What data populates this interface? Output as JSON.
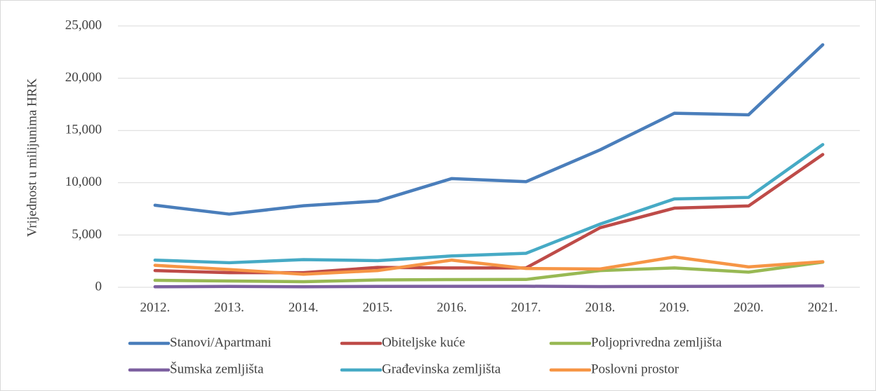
{
  "chart_data": {
    "type": "line",
    "ylabel": "Vrijednost u milijunima HRK",
    "categories": [
      "2012.",
      "2013.",
      "2014.",
      "2015.",
      "2016.",
      "2017.",
      "2018.",
      "2019.",
      "2020.",
      "2021."
    ],
    "series": [
      {
        "name": "Stanovi/Apartmani",
        "color": "#4a7ebb",
        "values": [
          7850,
          7000,
          7800,
          8250,
          10400,
          10100,
          13150,
          16650,
          16500,
          23200
        ]
      },
      {
        "name": "Obiteljske kuće",
        "color": "#be4b48",
        "values": [
          1600,
          1400,
          1400,
          1900,
          1850,
          1850,
          5700,
          7570,
          7780,
          12700
        ]
      },
      {
        "name": "Poljoprivredna zemljišta",
        "color": "#98b954",
        "values": [
          670,
          600,
          540,
          700,
          740,
          750,
          1600,
          1850,
          1450,
          2400
        ]
      },
      {
        "name": "Šumska zemljišta",
        "color": "#7d60a0",
        "values": [
          50,
          80,
          50,
          80,
          90,
          100,
          70,
          80,
          100,
          130
        ]
      },
      {
        "name": "Građevinska zemljišta",
        "color": "#46aac5",
        "values": [
          2600,
          2350,
          2650,
          2550,
          3000,
          3250,
          6050,
          8450,
          8600,
          13650
        ]
      },
      {
        "name": "Poslovni prostor",
        "color": "#f69545",
        "values": [
          2100,
          1700,
          1250,
          1600,
          2600,
          1800,
          1750,
          2900,
          1950,
          2450
        ]
      }
    ],
    "ylim": [
      0,
      25000
    ],
    "yticks": [
      0,
      {
        "value": 5000,
        "label": "5,000"
      },
      {
        "value": 10000,
        "label": "10,000"
      },
      {
        "value": 15000,
        "label": "15,000"
      },
      {
        "value": 20000,
        "label": "20,000"
      },
      {
        "value": 25000,
        "label": "25,000"
      }
    ],
    "grid": true
  }
}
